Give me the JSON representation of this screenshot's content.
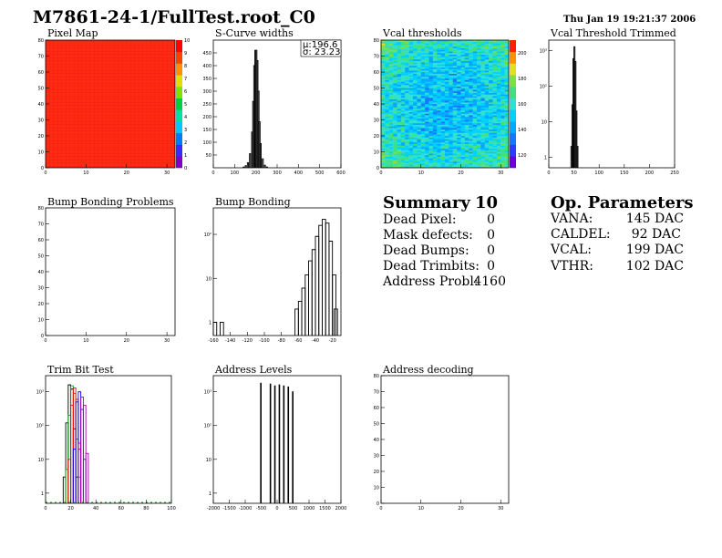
{
  "page": {
    "title": "M7861-24-1/FullTest.root_C0",
    "date": "Thu Jan 19 19:21:37 2006"
  },
  "summary": {
    "title": "Summary",
    "value": "10",
    "rows": [
      {
        "label": "Dead Pixel:",
        "value": "0"
      },
      {
        "label": "Mask defects:",
        "value": "0"
      },
      {
        "label": "Dead Bumps:",
        "value": "0"
      },
      {
        "label": "Dead Trimbits:",
        "value": "0"
      },
      {
        "label": "Address Probl:",
        "value": "4160"
      }
    ]
  },
  "op_params": {
    "title": "Op. Parameters",
    "rows": [
      {
        "label": "VANA:",
        "value": "145 DAC"
      },
      {
        "label": "CALDEL:",
        "value": "92 DAC"
      },
      {
        "label": "VCAL:",
        "value": "199 DAC"
      },
      {
        "label": "VTHR:",
        "value": "102 DAC"
      }
    ]
  },
  "chart_data": [
    {
      "id": "pixel-map",
      "type": "heatmap",
      "title": "Pixel Map",
      "xlim": [
        0,
        32
      ],
      "ylim": [
        0,
        80
      ],
      "zlim": [
        0,
        10
      ],
      "fill_value": 10,
      "fill_color": "#ff2a12",
      "xticks": [
        "0",
        "10",
        "20",
        "30"
      ],
      "yticks": [
        "0",
        "10",
        "20",
        "30",
        "40",
        "50",
        "60",
        "70",
        "80"
      ],
      "zticks": [
        "0",
        "1",
        "2",
        "3",
        "4",
        "5",
        "6",
        "7",
        "8",
        "9",
        "10"
      ],
      "palette": [
        "#7b00c8",
        "#3c28ff",
        "#0078ff",
        "#00c8ff",
        "#00e0a0",
        "#00d040",
        "#80e000",
        "#e0e000",
        "#ff9000",
        "#ff4000",
        "#ff0000"
      ]
    },
    {
      "id": "s-curve-widths",
      "type": "histogram",
      "title": "S-Curve widths",
      "xlim": [
        0,
        600
      ],
      "ylim": [
        0,
        500
      ],
      "xticks": [
        "0",
        "100",
        "200",
        "300",
        "400",
        "500",
        "600"
      ],
      "yticks": [
        "50",
        "100",
        "150",
        "200",
        "250",
        "300",
        "350",
        "400",
        "450"
      ],
      "stats": {
        "mean_label": "μ:",
        "mean": "196.6",
        "sigma_label": "σ:",
        "sigma": "23.23"
      },
      "bins": [
        [
          140,
          3
        ],
        [
          150,
          8
        ],
        [
          160,
          20
        ],
        [
          170,
          55
        ],
        [
          180,
          140
        ],
        [
          185,
          260
        ],
        [
          190,
          400
        ],
        [
          195,
          460
        ],
        [
          200,
          460
        ],
        [
          205,
          420
        ],
        [
          210,
          300
        ],
        [
          215,
          180
        ],
        [
          220,
          95
        ],
        [
          230,
          35
        ],
        [
          240,
          10
        ],
        [
          250,
          3
        ]
      ]
    },
    {
      "id": "vcal-thresholds",
      "type": "heatmap",
      "title": "Vcal thresholds",
      "xlim": [
        0,
        32
      ],
      "ylim": [
        0,
        80
      ],
      "zlim": [
        110,
        210
      ],
      "mean": 145,
      "xticks": [
        "0",
        "10",
        "20",
        "30"
      ],
      "yticks": [
        "0",
        "10",
        "20",
        "30",
        "40",
        "50",
        "60",
        "70",
        "80"
      ],
      "zticks": [
        "120",
        "140",
        "160",
        "180",
        "200"
      ],
      "palette": [
        "#6a00d8",
        "#2c3cff",
        "#1478ff",
        "#00a8ff",
        "#00d0ff",
        "#30e0d0",
        "#40e080",
        "#80e040",
        "#e0e020",
        "#ff9000",
        "#ff2000"
      ]
    },
    {
      "id": "vcal-threshold-trimmed",
      "type": "histogram",
      "title": "Vcal Threshold Trimmed",
      "xlim": [
        0,
        250
      ],
      "log_y": true,
      "ylim": [
        0.5,
        2000
      ],
      "xticks": [
        "0",
        "50",
        "100",
        "150",
        "200",
        "250"
      ],
      "yticks": [
        "1",
        "10",
        "10²",
        "10³"
      ],
      "bins": [
        [
          44,
          2
        ],
        [
          46,
          30
        ],
        [
          48,
          600
        ],
        [
          50,
          1300
        ],
        [
          52,
          500
        ],
        [
          54,
          20
        ],
        [
          56,
          2
        ]
      ]
    },
    {
      "id": "bump-bonding-problems",
      "type": "heatmap",
      "title": "Bump Bonding Problems",
      "xlim": [
        0,
        32
      ],
      "ylim": [
        0,
        80
      ],
      "xticks": [
        "0",
        "10",
        "20",
        "30"
      ],
      "yticks": [
        "0",
        "10",
        "20",
        "30",
        "40",
        "50",
        "60",
        "70",
        "80"
      ],
      "values": []
    },
    {
      "id": "bump-bonding",
      "type": "histogram",
      "title": "Bump Bonding",
      "xlim": [
        -160,
        -10
      ],
      "log_y": true,
      "ylim": [
        0.5,
        400
      ],
      "xticks": [
        "-160",
        "-140",
        "-120",
        "-100",
        "-80",
        "-60",
        "-40",
        "-20"
      ],
      "yticks": [
        "1",
        "10",
        "10²"
      ],
      "bins": [
        [
          -160,
          1
        ],
        [
          -152,
          1
        ],
        [
          -64,
          2
        ],
        [
          -60,
          3
        ],
        [
          -56,
          6
        ],
        [
          -52,
          12
        ],
        [
          -48,
          25
        ],
        [
          -44,
          45
        ],
        [
          -40,
          90
        ],
        [
          -36,
          160
        ],
        [
          -32,
          220
        ],
        [
          -28,
          180
        ],
        [
          -24,
          70
        ],
        [
          -20,
          12
        ],
        [
          -18,
          2
        ]
      ]
    },
    {
      "id": "trim-bit-test",
      "type": "histogram",
      "title": "Trim Bit Test",
      "xlim": [
        0,
        100
      ],
      "log_y": true,
      "ylim": [
        0.5,
        3000
      ],
      "xticks": [
        "0",
        "20",
        "40",
        "60",
        "80",
        "100"
      ],
      "yticks": [
        "1",
        "10",
        "10²",
        "10³"
      ],
      "series": [
        {
          "color": "#000000",
          "bins": [
            [
              14,
              3
            ],
            [
              16,
              120
            ],
            [
              18,
              1600
            ],
            [
              20,
              1200
            ],
            [
              22,
              80
            ],
            [
              24,
              3
            ]
          ]
        },
        {
          "color": "#00aa00",
          "bins": [
            [
              16,
              5
            ],
            [
              18,
              200
            ],
            [
              20,
              1500
            ],
            [
              22,
              900
            ],
            [
              24,
              40
            ],
            [
              26,
              3
            ]
          ]
        },
        {
          "color": "#ff0000",
          "bins": [
            [
              18,
              10
            ],
            [
              20,
              400
            ],
            [
              22,
              1300
            ],
            [
              24,
              600
            ],
            [
              26,
              20
            ]
          ]
        },
        {
          "color": "#0000ff",
          "bins": [
            [
              22,
              20
            ],
            [
              24,
              500
            ],
            [
              26,
              1000
            ],
            [
              28,
              300
            ],
            [
              30,
              10
            ]
          ]
        },
        {
          "color": "#aa00aa",
          "bins": [
            [
              26,
              30
            ],
            [
              28,
              700
            ],
            [
              30,
              400
            ],
            [
              32,
              15
            ]
          ]
        }
      ]
    },
    {
      "id": "address-levels",
      "type": "histogram",
      "title": "Address Levels",
      "xlim": [
        -2000,
        2000
      ],
      "log_y": true,
      "ylim": [
        0.5,
        3000
      ],
      "xticks": [
        "-2000",
        "-1500",
        "-1000",
        "-500",
        "0",
        "500",
        "1000",
        "1500",
        "2000"
      ],
      "yticks": [
        "1",
        "10",
        "10²",
        "10³"
      ],
      "bins": [
        [
          -520,
          1800
        ],
        [
          -220,
          1700
        ],
        [
          -80,
          1500
        ],
        [
          60,
          1600
        ],
        [
          200,
          1500
        ],
        [
          340,
          1400
        ],
        [
          480,
          1000
        ]
      ]
    },
    {
      "id": "address-decoding",
      "type": "heatmap",
      "title": "Address decoding",
      "xlim": [
        0,
        32
      ],
      "ylim": [
        0,
        80
      ],
      "xticks": [
        "0",
        "10",
        "20",
        "30"
      ],
      "yticks": [
        "0",
        "10",
        "20",
        "30",
        "40",
        "50",
        "60",
        "70",
        "80"
      ],
      "values": []
    }
  ]
}
